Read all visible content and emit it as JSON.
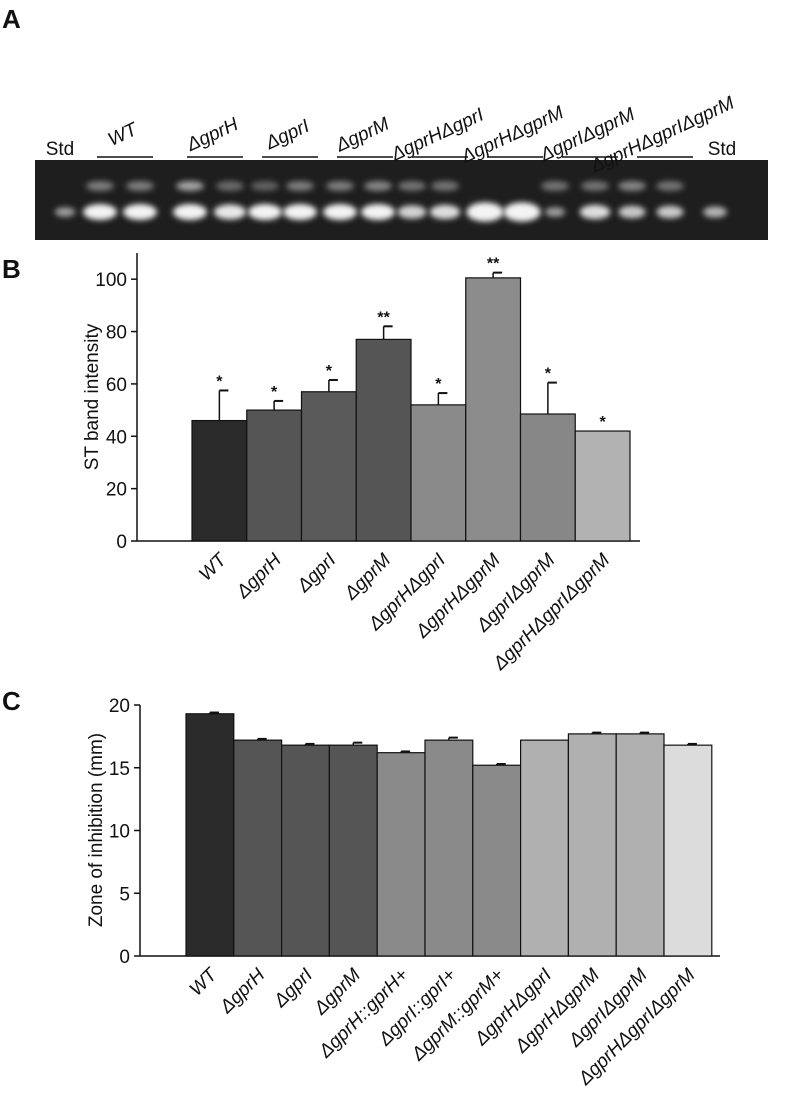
{
  "panel_labels": [
    "A",
    "B",
    "C"
  ],
  "gel": {
    "lane_labels": [
      "Std",
      "WT",
      "ΔgprH",
      "ΔgprI",
      "ΔgprM",
      "ΔgprHΔgprI",
      "ΔgprHΔgprM",
      "ΔgprIΔgprM",
      "ΔgprHΔgprIΔgprM",
      "Std"
    ]
  },
  "chart_data": [
    {
      "type": "bar",
      "y_label": "ST band intensity",
      "categories": [
        "WT",
        "ΔgprH",
        "ΔgprI",
        "ΔgprM",
        "ΔgprHΔgprI",
        "ΔgprHΔgprM",
        "ΔgprIΔgprM",
        "ΔgprHΔgprIΔgprM"
      ],
      "values": [
        46,
        50,
        57,
        77,
        52,
        100.5,
        48.5,
        42
      ],
      "errors": [
        11.5,
        3.5,
        4.5,
        5,
        4.5,
        2,
        12,
        0
      ],
      "annotations": [
        "*",
        "*",
        "*",
        "**",
        "*",
        "**",
        "*",
        "*"
      ],
      "colors": [
        "#2a2a2a",
        "#555555",
        "#5a5a5a",
        "#555555",
        "#8a8a8a",
        "#8c8c8c",
        "#878787",
        "#b2b2b2"
      ],
      "ylim": [
        0,
        110
      ],
      "yticks": [
        0,
        20,
        40,
        60,
        80,
        100
      ]
    },
    {
      "type": "bar",
      "y_label": "Zone of inhibition (mm)",
      "categories": [
        "WT",
        "ΔgprH",
        "ΔgprI",
        "ΔgprM",
        "ΔgprH::gprH+",
        "ΔgprI::gprI+",
        "ΔgprM::gprM+",
        "ΔgprHΔgprI",
        "ΔgprHΔgprM",
        "ΔgprIΔgprM",
        "ΔgprHΔgprIΔgprM"
      ],
      "values": [
        19.3,
        17.2,
        16.8,
        16.8,
        16.2,
        17.2,
        15.2,
        17.2,
        17.7,
        17.7,
        16.8
      ],
      "errors": [
        0.1,
        0.1,
        0.1,
        0.2,
        0.1,
        0.2,
        0.1,
        0,
        0.1,
        0.1,
        0.1
      ],
      "colors": [
        "#2b2b2b",
        "#555555",
        "#555555",
        "#555555",
        "#8a8a8a",
        "#8a8a8a",
        "#8a8a8a",
        "#b0b0b0",
        "#b0b0b0",
        "#b0b0b0",
        "#dcdcdc"
      ],
      "ylim": [
        0,
        20
      ],
      "yticks": [
        0,
        5,
        10,
        15,
        20
      ]
    }
  ]
}
